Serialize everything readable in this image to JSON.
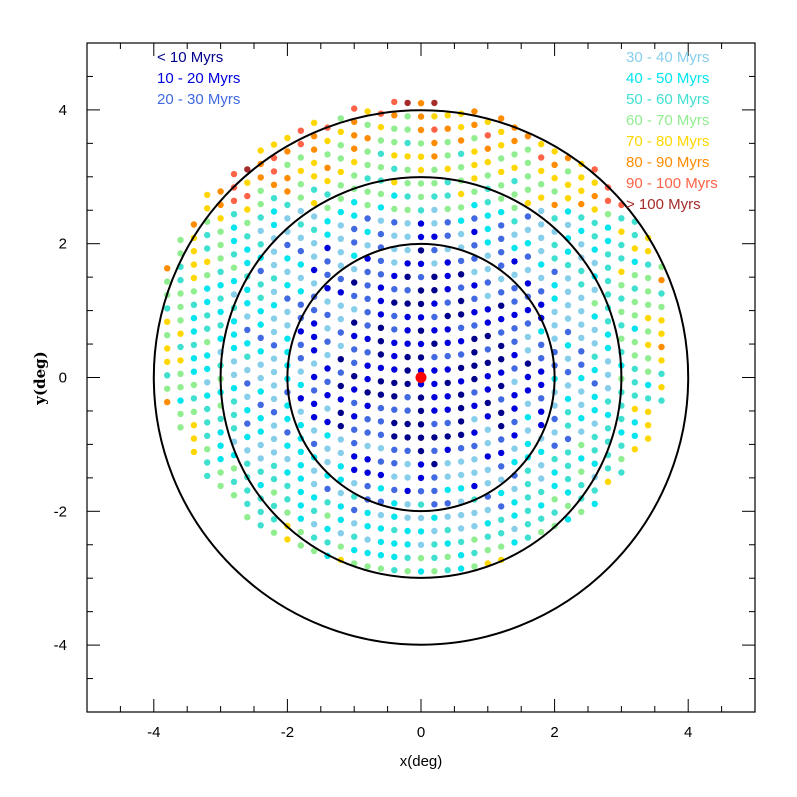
{
  "chart_data": {
    "type": "scatter",
    "title": "",
    "xlabel": "x(deg)",
    "ylabel": "y(deg)",
    "xlim": [
      -5,
      5
    ],
    "ylim": [
      -5,
      5
    ],
    "xticks": [
      -4,
      -2,
      0,
      2,
      4
    ],
    "yticks": [
      -4,
      -2,
      0,
      2,
      4
    ],
    "xtick_labels": [
      "-4",
      "-2",
      "0",
      "2",
      "4"
    ],
    "ytick_labels": [
      "-4",
      "-2",
      "0",
      "2",
      "4"
    ],
    "grid": false,
    "circles": [
      {
        "name": "radius-2-circle",
        "center": [
          0,
          0
        ],
        "r": 2
      },
      {
        "name": "radius-3-circle",
        "center": [
          0,
          0
        ],
        "r": 3
      },
      {
        "name": "radius-4-circle",
        "center": [
          0,
          0
        ],
        "r": 4
      }
    ],
    "center_marker": {
      "x": 0,
      "y": 0,
      "color": "#ff0000"
    },
    "point_grid": {
      "row_spacing_deg": 0.2,
      "rows_from_y": -2.9,
      "rows_to_y": 4.1,
      "point_spacing_deg": 0.2,
      "curvature": 0.012,
      "footprint": {
        "center_x": -0.1,
        "center_y": 0.6,
        "radius_x": 3.85,
        "radius_y": 3.5,
        "bottom_y": -2.95,
        "top_y": 4.2
      }
    },
    "legend": [
      {
        "label": "< 10 Myrs",
        "color": "#00008b",
        "placement": "top-left"
      },
      {
        "label": "10 - 20 Myrs",
        "color": "#0000dd",
        "placement": "top-left"
      },
      {
        "label": "20 - 30 Myrs",
        "color": "#4169e1",
        "placement": "top-left"
      },
      {
        "label": "30 - 40 Myrs",
        "color": "#87ceeb",
        "placement": "top-right"
      },
      {
        "label": "40 - 50 Myrs",
        "color": "#00e5ee",
        "placement": "top-right"
      },
      {
        "label": "50 - 60 Myrs",
        "color": "#40e0d0",
        "placement": "top-right"
      },
      {
        "label": "60 - 70 Myrs",
        "color": "#90ee90",
        "placement": "top-right"
      },
      {
        "label": "70 - 80 Myrs",
        "color": "#ffd700",
        "placement": "top-right"
      },
      {
        "label": "80 - 90 Myrs",
        "color": "#ff8c00",
        "placement": "top-right"
      },
      {
        "label": "90 - 100 Myrs",
        "color": "#ff6347",
        "placement": "top-right"
      },
      {
        "label": "> 100 Myrs",
        "color": "#a52a2a",
        "placement": "top-right"
      }
    ]
  }
}
